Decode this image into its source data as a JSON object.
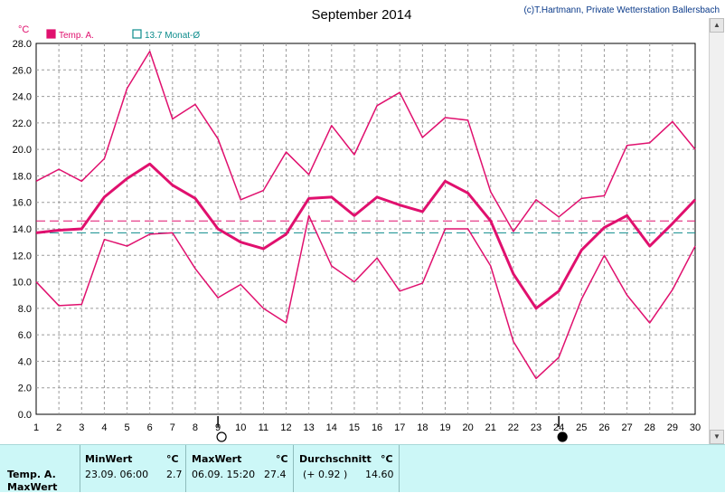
{
  "chart_data": {
    "type": "line",
    "title": "September 2014",
    "copyright": "(c)T.Hartmann, Private Wetterstation Ballersbach",
    "ylabel": "°C",
    "ylim": [
      0,
      28
    ],
    "yticks": [
      "0.0",
      "2.0",
      "4.0",
      "6.0",
      "8.0",
      "10.0",
      "12.0",
      "14.0",
      "16.0",
      "18.0",
      "20.0",
      "22.0",
      "24.0",
      "26.0",
      "28.0"
    ],
    "x": [
      1,
      2,
      3,
      4,
      5,
      6,
      7,
      8,
      9,
      10,
      11,
      12,
      13,
      14,
      15,
      16,
      17,
      18,
      19,
      20,
      21,
      22,
      23,
      24,
      25,
      26,
      27,
      28,
      29,
      30
    ],
    "grid": true,
    "legend": [
      {
        "label": "Temp. A.",
        "color": "#e0106e",
        "marker": "filled-square"
      },
      {
        "label": "13.7 Monat-Ø",
        "color": "#0c8c8c",
        "marker": "open-square"
      }
    ],
    "series": [
      {
        "role": "max",
        "color": "#e0106e",
        "width": 1.5,
        "values": [
          17.6,
          18.5,
          17.6,
          19.3,
          24.6,
          27.4,
          22.3,
          23.4,
          20.8,
          16.2,
          16.9,
          19.8,
          18.1,
          21.8,
          19.6,
          23.3,
          24.3,
          20.9,
          22.4,
          22.2,
          16.8,
          13.8,
          16.2,
          14.9,
          16.3,
          16.5,
          20.3,
          20.5,
          22.1,
          20.0
        ]
      },
      {
        "role": "mean",
        "color": "#e0106e",
        "width": 3,
        "values": [
          13.7,
          13.9,
          14.0,
          16.4,
          17.8,
          18.9,
          17.3,
          16.3,
          14.0,
          13.0,
          12.5,
          13.6,
          16.3,
          16.4,
          15.0,
          16.4,
          15.8,
          15.3,
          17.6,
          16.7,
          14.6,
          10.6,
          8.0,
          9.3,
          12.4,
          14.1,
          15.0,
          12.7,
          14.4,
          16.2
        ]
      },
      {
        "role": "min",
        "color": "#e0106e",
        "width": 1.5,
        "values": [
          10.0,
          8.2,
          8.3,
          13.2,
          12.7,
          13.6,
          13.7,
          11.0,
          8.8,
          9.8,
          8.0,
          6.9,
          15.0,
          11.2,
          10.0,
          11.8,
          9.3,
          9.9,
          14.0,
          14.0,
          11.2,
          5.5,
          2.7,
          4.3,
          8.7,
          12.0,
          9.0,
          6.9,
          9.4,
          12.7
        ]
      }
    ],
    "reference_lines": [
      {
        "value": 14.6,
        "color": "#e0106e",
        "style": "dashed"
      },
      {
        "value": 13.7,
        "color": "#0c8c8c",
        "style": "dashed"
      }
    ],
    "moon_markers": [
      {
        "day": 9,
        "symbol": "full-moon",
        "glyph": "○"
      },
      {
        "day": 24,
        "symbol": "new-moon",
        "glyph": "●"
      }
    ]
  },
  "stats": {
    "row_label": "Temp. A.",
    "row_label2": "MaxWert",
    "min_header": "MinWert",
    "min_unit": "°C",
    "min_date": "23.09.  06:00",
    "min_value": "2.7",
    "max_header": "MaxWert",
    "max_unit": "°C",
    "max_date": "06.09.  15:20",
    "max_value": "27.4",
    "avg_header": "Durchschnitt",
    "avg_unit": "°C",
    "avg_delta": "(+ 0.92 )",
    "avg_value": "14.60"
  }
}
